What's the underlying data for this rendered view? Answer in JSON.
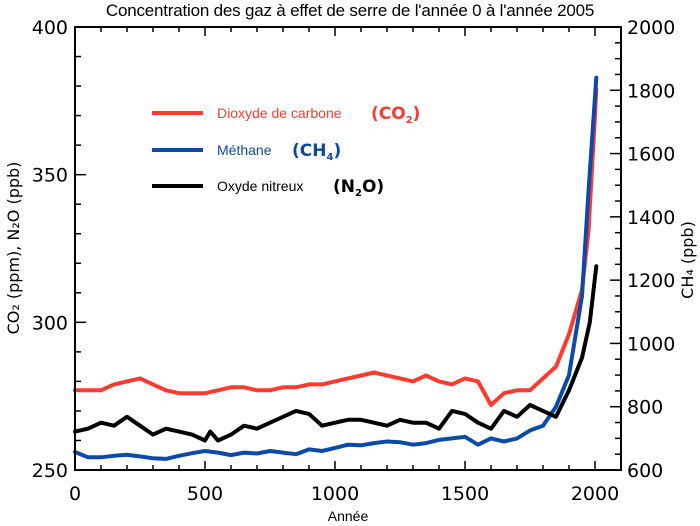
{
  "chart_data": {
    "type": "line",
    "title": "Concentration des gaz à effet de serre de l'année 0 à l'année 2005",
    "xlabel": "Année",
    "ylabel_left": "CO₂ (ppm), N₂O (ppb)",
    "ylabel_right": "CH₄ (ppb)",
    "xlim": [
      0,
      2100
    ],
    "ylim_left": [
      250,
      400
    ],
    "ylim_right": [
      600,
      2000
    ],
    "x_ticks": [
      0,
      500,
      1000,
      1500,
      2000
    ],
    "y_left_ticks": [
      250,
      300,
      350,
      400
    ],
    "y_right_ticks": [
      600,
      800,
      1000,
      1200,
      1400,
      1600,
      1800,
      2000
    ],
    "grid": false,
    "legend_position": "upper-left inside",
    "series": [
      {
        "name": "Dioxyde de carbone",
        "formula": "(CO₂)",
        "axis": "left",
        "color": "#ff3b30",
        "x": [
          0,
          50,
          100,
          150,
          200,
          250,
          300,
          350,
          400,
          450,
          500,
          550,
          600,
          650,
          700,
          750,
          800,
          850,
          900,
          950,
          1000,
          1050,
          1100,
          1150,
          1200,
          1250,
          1300,
          1350,
          1400,
          1450,
          1500,
          1550,
          1600,
          1650,
          1700,
          1750,
          1800,
          1850,
          1900,
          1950,
          1975,
          2000,
          2005
        ],
        "values": [
          277,
          277,
          277,
          279,
          280,
          281,
          279,
          277,
          276,
          276,
          276,
          277,
          278,
          278,
          277,
          277,
          278,
          278,
          279,
          279,
          280,
          281,
          282,
          283,
          282,
          281,
          280,
          282,
          280,
          279,
          281,
          280,
          272,
          276,
          277,
          277,
          281,
          285,
          296,
          311,
          331,
          370,
          379
        ]
      },
      {
        "name": "Méthane",
        "formula": "(CH₄)",
        "axis": "right",
        "color": "#0b4aa8",
        "x": [
          0,
          50,
          100,
          150,
          200,
          250,
          300,
          350,
          400,
          450,
          500,
          550,
          600,
          650,
          700,
          750,
          800,
          850,
          900,
          950,
          1000,
          1050,
          1100,
          1150,
          1200,
          1250,
          1300,
          1350,
          1400,
          1450,
          1500,
          1550,
          1600,
          1650,
          1700,
          1750,
          1800,
          1850,
          1900,
          1950,
          1975,
          2000,
          2005
        ],
        "values": [
          657,
          640,
          640,
          645,
          648,
          643,
          637,
          635,
          645,
          653,
          660,
          655,
          647,
          655,
          652,
          660,
          655,
          650,
          665,
          660,
          670,
          680,
          678,
          685,
          690,
          688,
          680,
          685,
          695,
          700,
          705,
          680,
          700,
          690,
          700,
          725,
          740,
          800,
          900,
          1150,
          1480,
          1780,
          1840
        ]
      },
      {
        "name": "Oxyde nitreux",
        "formula": "(N₂O)",
        "axis": "left",
        "color": "#000000",
        "x": [
          0,
          50,
          100,
          150,
          200,
          250,
          300,
          350,
          400,
          450,
          500,
          520,
          550,
          600,
          650,
          700,
          750,
          800,
          850,
          900,
          950,
          1000,
          1050,
          1100,
          1150,
          1200,
          1250,
          1300,
          1350,
          1400,
          1450,
          1500,
          1550,
          1600,
          1650,
          1700,
          1750,
          1800,
          1850,
          1900,
          1950,
          1980,
          2005
        ],
        "values": [
          263,
          264,
          266,
          265,
          268,
          265,
          262,
          264,
          263,
          262,
          260,
          263,
          260,
          262,
          265,
          264,
          266,
          268,
          270,
          269,
          265,
          266,
          267,
          267,
          266,
          265,
          267,
          266,
          266,
          264,
          270,
          269,
          266,
          264,
          270,
          268,
          272,
          270,
          268,
          277,
          288,
          300,
          319
        ]
      }
    ]
  },
  "axes": {
    "x_tick_labels": [
      "0",
      "500",
      "1000",
      "1500",
      "2000"
    ],
    "y_left_tick_labels": [
      "250",
      "300",
      "350",
      "400"
    ],
    "y_right_tick_labels": [
      "600",
      "800",
      "1000",
      "1200",
      "1400",
      "1600",
      "1800",
      "2000"
    ]
  },
  "legend": [
    {
      "label": "Dioxyde de carbone",
      "formula_main": "(CO",
      "formula_sub": "2",
      "formula_end": ")"
    },
    {
      "label": "Méthane",
      "formula_main": "(CH",
      "formula_sub": "4",
      "formula_end": ")"
    },
    {
      "label": "Oxyde nitreux",
      "formula_main": "(N",
      "formula_sub": "2",
      "formula_end": "O)"
    }
  ]
}
